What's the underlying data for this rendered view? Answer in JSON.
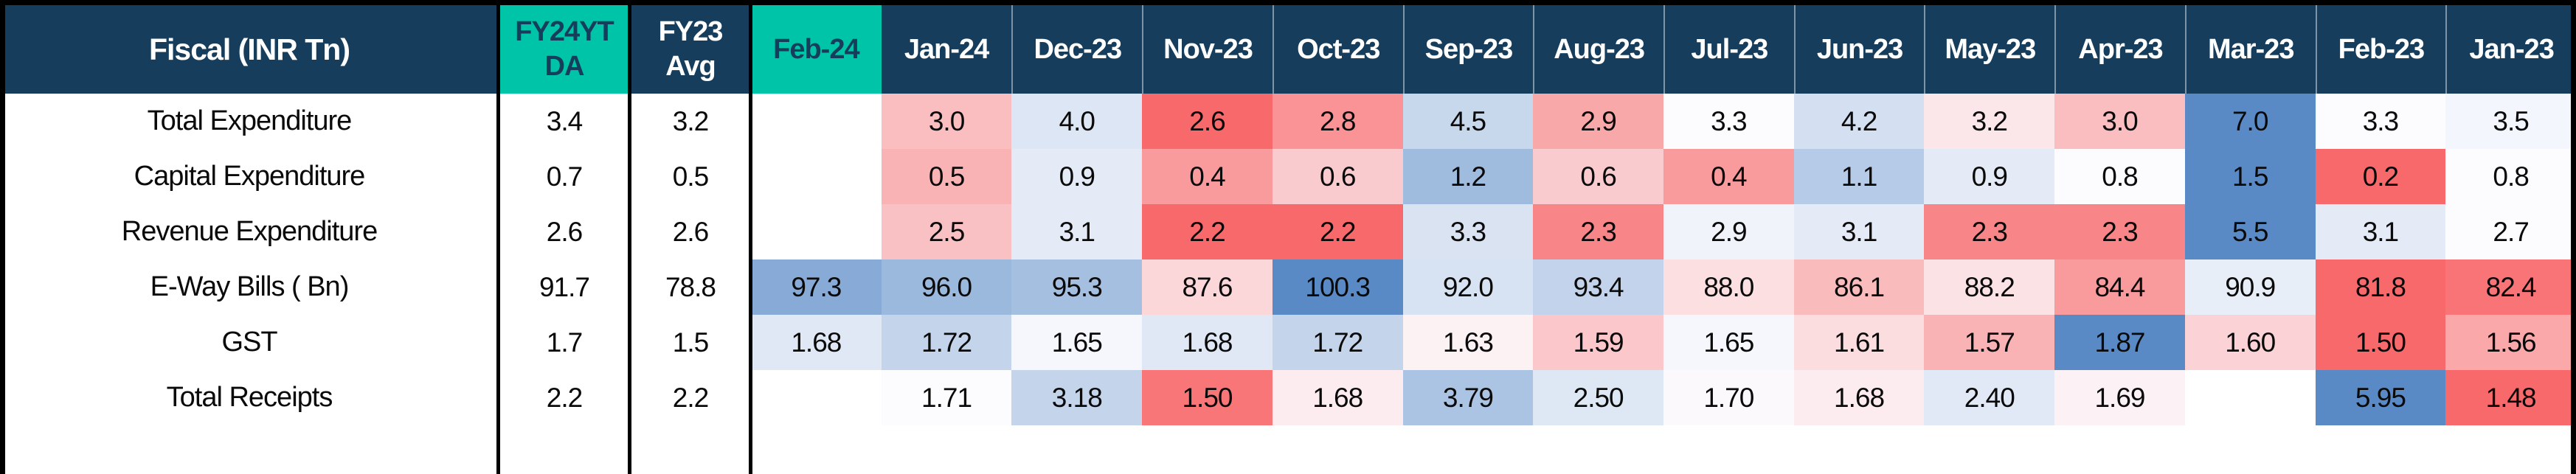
{
  "colors": {
    "header_bg": "#163D5C",
    "header_text": "#FFFFFF",
    "highlight_bg": "#00C4A7",
    "highlight_text": "#163D5C",
    "border": "#000000",
    "cell_text": "#0A0A0A",
    "scale_low": "#F8696B",
    "scale_mid": "#FCFCFF",
    "scale_high": "#5A8AC6"
  },
  "header": {
    "corner_label": "Fiscal  (INR Tn)",
    "summary_columns": [
      "FY24YT\nDA",
      "FY23\nAvg"
    ],
    "highlight_month": "Feb-24"
  },
  "chart_data": {
    "type": "heatmap",
    "title": "Fiscal (INR Tn)",
    "colorscale": {
      "low": "#F8696B",
      "mid": "#FCFCFF",
      "high": "#5A8AC6",
      "note": "per-row diverging scale: low=red, median=white, high=blue"
    },
    "summary_column_names": [
      "FY24YTDA",
      "FY23 Avg"
    ],
    "columns": [
      "Feb-24",
      "Jan-24",
      "Dec-23",
      "Nov-23",
      "Oct-23",
      "Sep-23",
      "Aug-23",
      "Jul-23",
      "Jun-23",
      "May-23",
      "Apr-23",
      "Mar-23",
      "Feb-23",
      "Jan-23"
    ],
    "rows": [
      {
        "label": "Total Expenditure",
        "fy24ytda": 3.4,
        "fy24ytda_display": "3.4",
        "fy23_avg": 3.2,
        "fy23_avg_display": "3.2",
        "values": [
          null,
          3.0,
          4.0,
          2.6,
          2.8,
          4.5,
          2.9,
          3.3,
          4.2,
          3.2,
          3.0,
          7.0,
          3.3,
          3.5
        ],
        "display": [
          "",
          "3.0",
          "4.0",
          "2.6",
          "2.8",
          "4.5",
          "2.9",
          "3.3",
          "4.2",
          "3.2",
          "3.0",
          "7.0",
          "3.3",
          "3.5"
        ],
        "colors": [
          "#FFFFFF",
          "#FABDC0",
          "#DDE6F4",
          "#F8696B",
          "#F99395",
          "#C7D7EC",
          "#F9A8AA",
          "#FCFCFF",
          "#D4E0F1",
          "#FBE7EA",
          "#FABDC0",
          "#5A8AC6",
          "#FCFCFF",
          "#F3F6FC"
        ]
      },
      {
        "label": "Capital Expenditure",
        "fy24ytda": 0.7,
        "fy24ytda_display": "0.7",
        "fy23_avg": 0.5,
        "fy23_avg_display": "0.5",
        "values": [
          null,
          0.5,
          0.9,
          0.4,
          0.6,
          1.2,
          0.6,
          0.4,
          1.1,
          0.9,
          0.8,
          1.5,
          0.2,
          0.8
        ],
        "display": [
          "",
          "0.5",
          "0.9",
          "0.4",
          "0.6",
          "1.2",
          "0.6",
          "0.4",
          "1.1",
          "0.9",
          "0.8",
          "1.5",
          "0.2",
          "0.8"
        ],
        "colors": [
          "#FFFFFF",
          "#FAB3B5",
          "#E4EAF6",
          "#F99A9C",
          "#FACBCE",
          "#9FBBDE",
          "#FACBCE",
          "#F99A9C",
          "#B6CBE7",
          "#E4EAF6",
          "#FCFCFF",
          "#5A8AC6",
          "#F8696B",
          "#FCFCFF"
        ]
      },
      {
        "label": "Revenue Expenditure",
        "fy24ytda": 2.6,
        "fy24ytda_display": "2.6",
        "fy23_avg": 2.6,
        "fy23_avg_display": "2.6",
        "values": [
          null,
          2.5,
          3.1,
          2.2,
          2.2,
          3.3,
          2.3,
          2.9,
          3.1,
          2.3,
          2.3,
          5.5,
          3.1,
          2.7
        ],
        "display": [
          "",
          "2.5",
          "3.1",
          "2.2",
          "2.2",
          "3.3",
          "2.3",
          "2.9",
          "3.1",
          "2.3",
          "2.3",
          "5.5",
          "3.1",
          "2.7"
        ],
        "colors": [
          "#FFFFFF",
          "#FAC1C4",
          "#E4EAF6",
          "#F8696B",
          "#F8696B",
          "#D9E3F2",
          "#F88688",
          "#F0F3FA",
          "#E4EAF6",
          "#F88688",
          "#F88688",
          "#5A8AC6",
          "#E4EAF6",
          "#FCFCFF"
        ]
      },
      {
        "label": "E-Way Bills ( Bn)",
        "fy24ytda": 91.7,
        "fy24ytda_display": "91.7",
        "fy23_avg": 78.8,
        "fy23_avg_display": "78.8",
        "values": [
          97.3,
          96.0,
          95.3,
          87.6,
          100.3,
          92.0,
          93.4,
          88.0,
          86.1,
          88.2,
          84.4,
          90.9,
          81.8,
          82.4
        ],
        "display": [
          "97.3",
          "96.0",
          "95.3",
          "87.6",
          "100.3",
          "92.0",
          "93.4",
          "88.0",
          "86.1",
          "88.2",
          "84.4",
          "90.9",
          "81.8",
          "82.4"
        ],
        "colors": [
          "#87AAD6",
          "#9BB8DD",
          "#A5BFE1",
          "#FBD7DA",
          "#5A8AC6",
          "#D7E2F2",
          "#C2D3EB",
          "#FBDFE1",
          "#FABBBD",
          "#FBE2E5",
          "#F99A9D",
          "#E8EEF8",
          "#F8696B",
          "#F87477"
        ]
      },
      {
        "label": "GST",
        "fy24ytda": 1.7,
        "fy24ytda_display": "1.7",
        "fy23_avg": 1.5,
        "fy23_avg_display": "1.5",
        "values": [
          1.68,
          1.72,
          1.65,
          1.68,
          1.72,
          1.63,
          1.59,
          1.65,
          1.61,
          1.57,
          1.87,
          1.6,
          1.5,
          1.56
        ],
        "display": [
          "1.68",
          "1.72",
          "1.65",
          "1.68",
          "1.72",
          "1.63",
          "1.59",
          "1.65",
          "1.61",
          "1.57",
          "1.87",
          "1.60",
          "1.50",
          "1.56"
        ],
        "colors": [
          "#E0E8F5",
          "#C4D4EB",
          "#F5F7FD",
          "#E0E8F5",
          "#C4D4EB",
          "#FCF2F4",
          "#FBC7CA",
          "#F5F7FD",
          "#FBDCDF",
          "#FAB3B5",
          "#5A8AC6",
          "#FBD2D5",
          "#F8696B",
          "#FAA8AA"
        ]
      },
      {
        "label": "Total Receipts",
        "fy24ytda": 2.2,
        "fy24ytda_display": "2.2",
        "fy23_avg": 2.2,
        "fy23_avg_display": "2.2",
        "values": [
          null,
          1.71,
          3.18,
          1.5,
          1.68,
          3.79,
          2.5,
          1.7,
          1.68,
          2.4,
          1.69,
          null,
          5.95,
          1.48
        ],
        "display": [
          "",
          "1.71",
          "3.18",
          "1.50",
          "1.68",
          "3.79",
          "2.50",
          "1.70",
          "1.68",
          "2.40",
          "1.69",
          "",
          "5.95",
          "1.48"
        ],
        "colors": [
          "#FFFFFF",
          "#FCFCFF",
          "#C4D4EB",
          "#F87678",
          "#FCECEF",
          "#ACC4E3",
          "#DEE7F4",
          "#FCF9FC",
          "#FCECEF",
          "#E2E9F6",
          "#FCF2F5",
          "#FFFFFF",
          "#5A8AC6",
          "#F8696B"
        ]
      }
    ]
  }
}
